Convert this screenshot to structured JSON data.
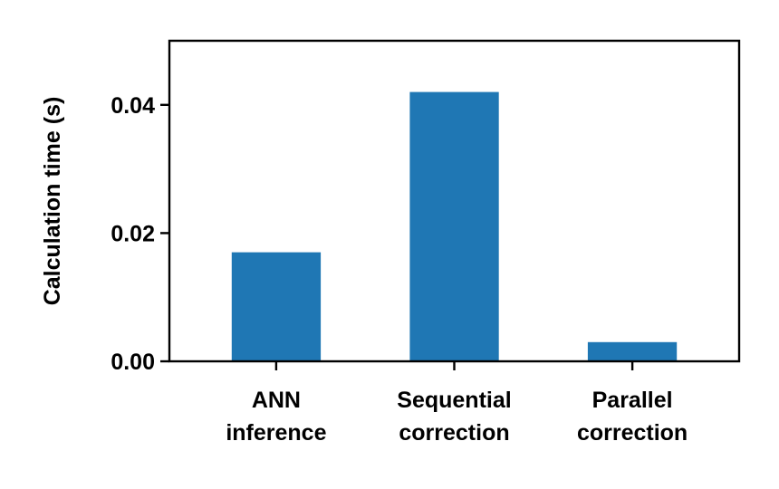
{
  "chart_data": {
    "type": "bar",
    "title": "",
    "xlabel": "",
    "ylabel": "Calculation time (s)",
    "categories": [
      [
        "ANN",
        "inference"
      ],
      [
        "Sequential",
        "correction"
      ],
      [
        "Parallel",
        "correction"
      ]
    ],
    "values": [
      0.017,
      0.042,
      0.003
    ],
    "ylim": [
      0,
      0.05
    ],
    "yticks": [
      0.0,
      0.02,
      0.04
    ],
    "ytick_labels": [
      "0.00",
      "0.02",
      "0.04"
    ],
    "bar_color": "#1f77b4",
    "grid": false,
    "legend": "none"
  }
}
